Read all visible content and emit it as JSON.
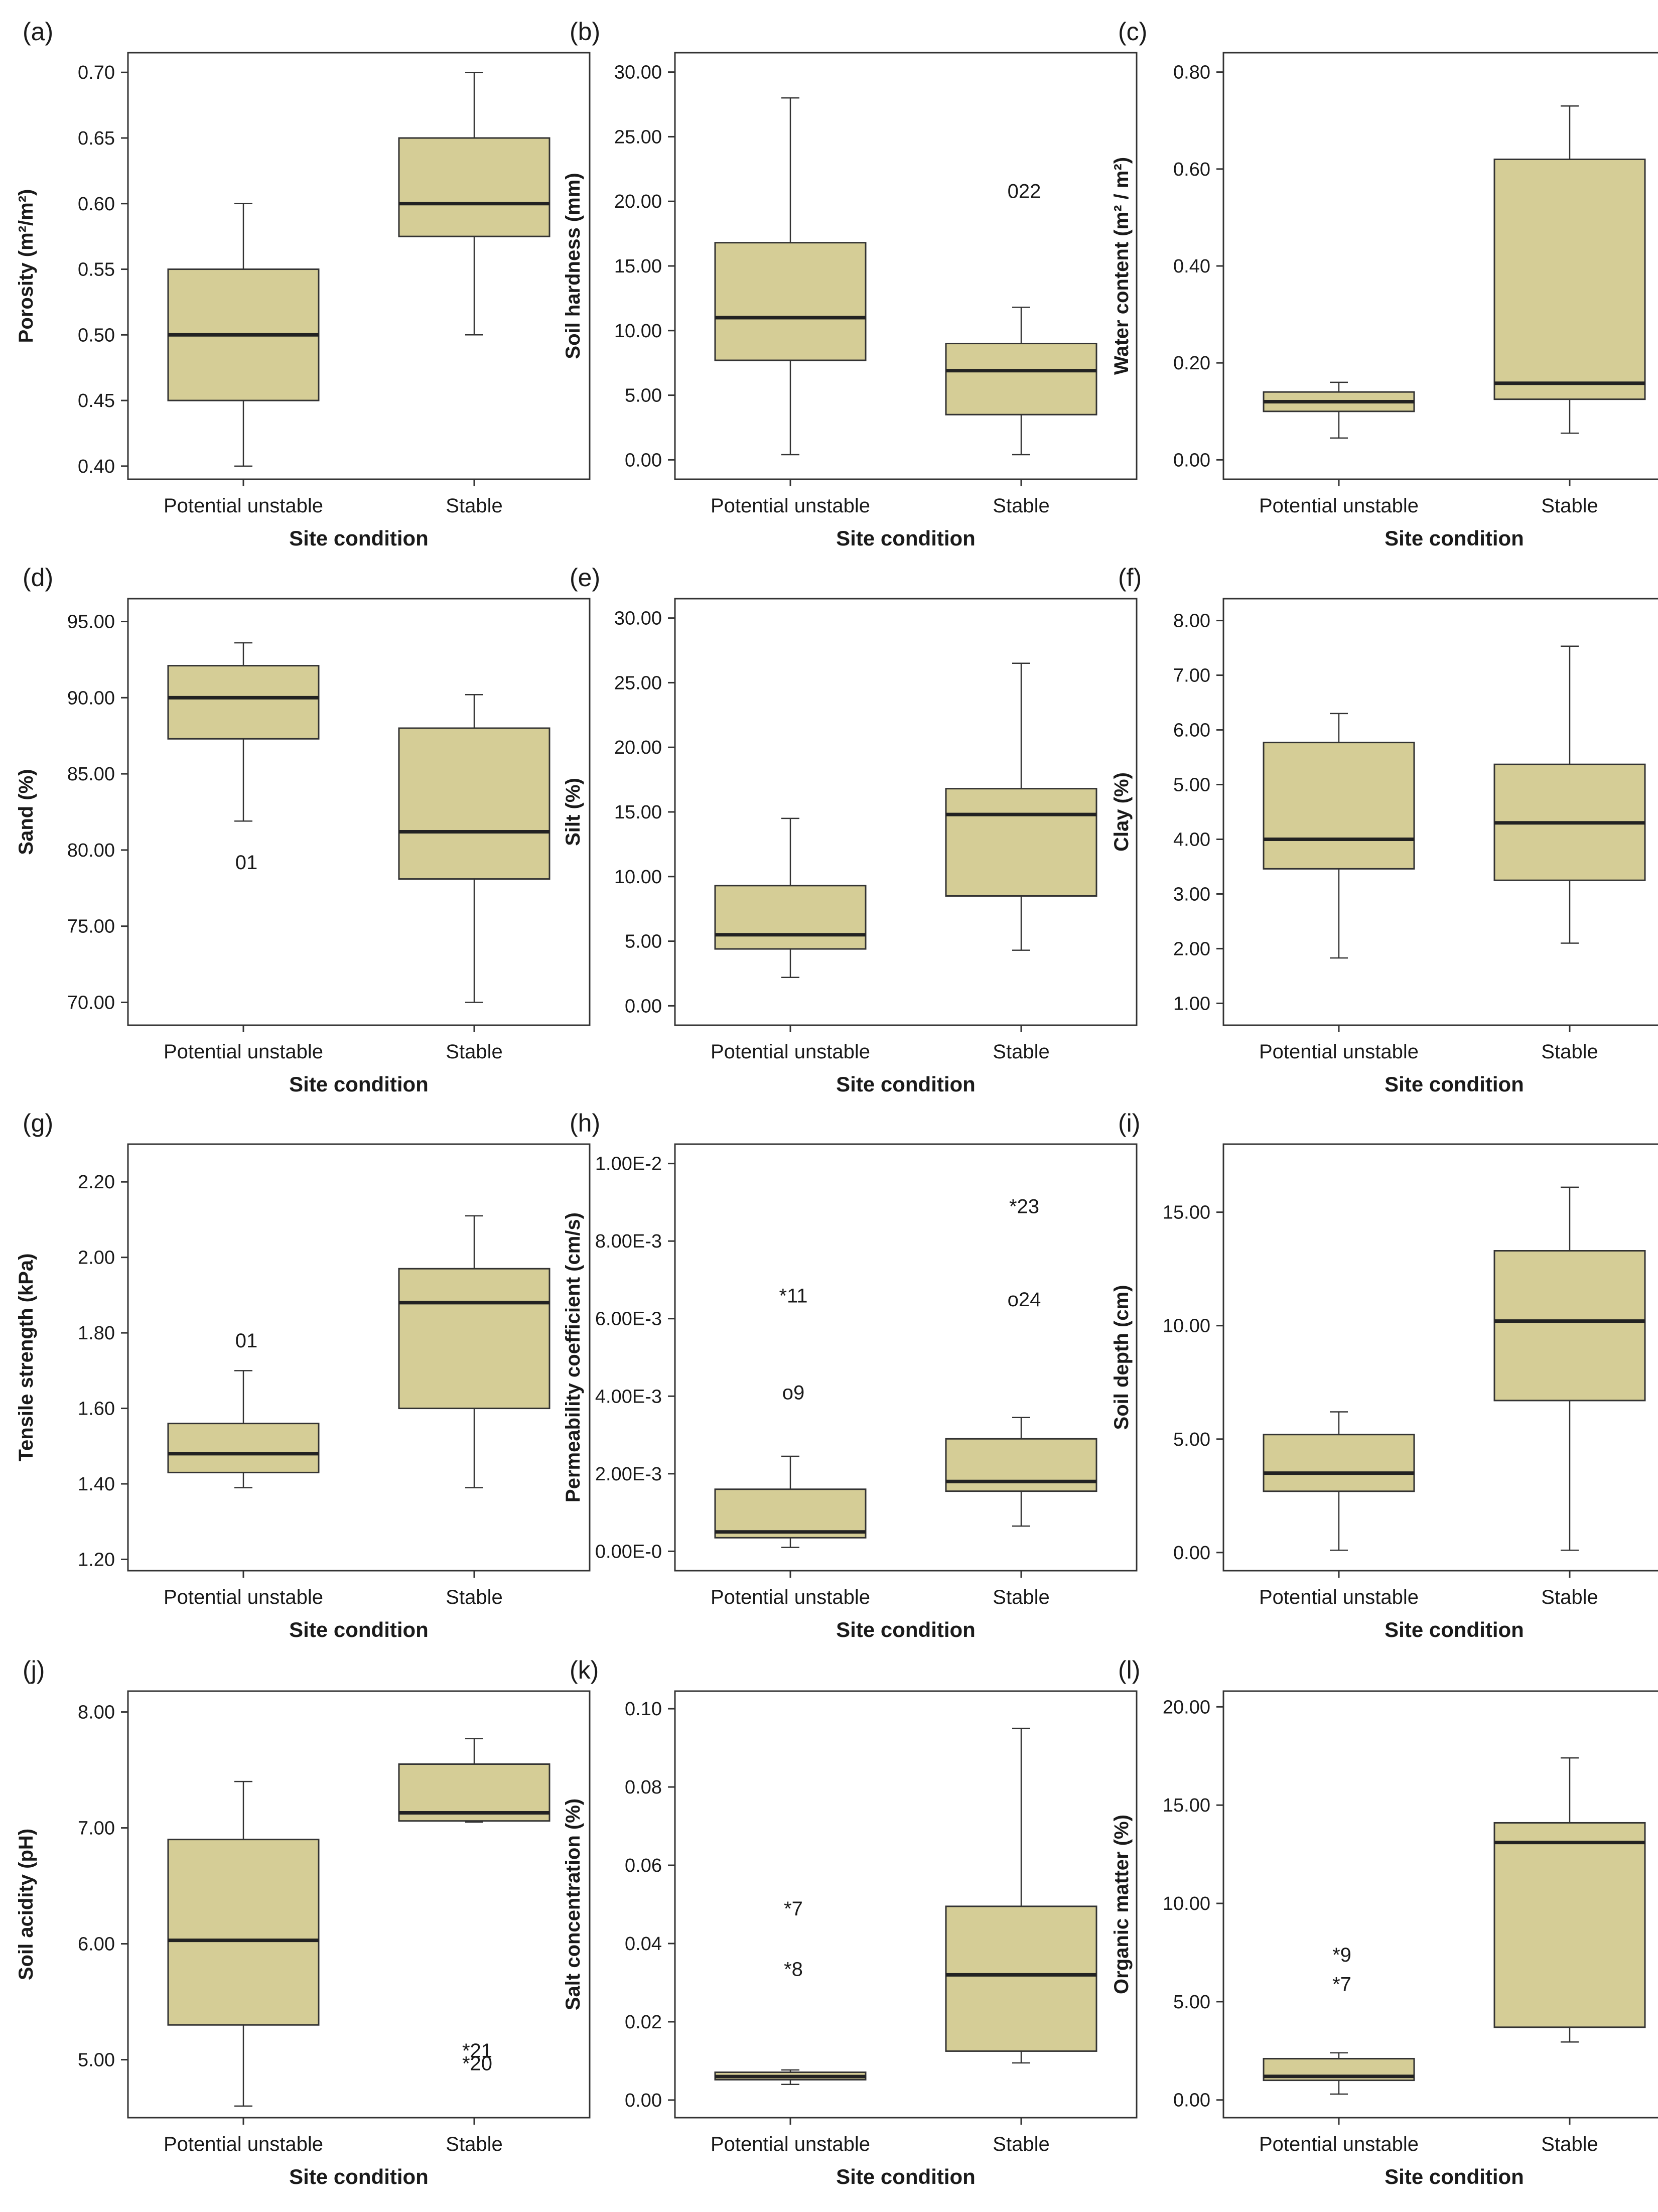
{
  "theme": {
    "box_fill": "#d5cd96",
    "stroke": "#333333",
    "text": "#1a1a1a",
    "background": "#ffffff"
  },
  "chart_data": [
    {
      "type": "box",
      "label": "(a)",
      "ylabel": "Porosity (m²/m²)",
      "xlabel": "Site condition",
      "categories": [
        "Potential unstable",
        "Stable"
      ],
      "ylim": [
        0.39,
        0.715
      ],
      "ticks": [
        "0.40",
        "0.45",
        "0.50",
        "0.55",
        "0.60",
        "0.65",
        "0.70"
      ],
      "series": [
        {
          "name": "Potential unstable",
          "min": 0.4,
          "q1": 0.45,
          "median": 0.5,
          "q3": 0.55,
          "max": 0.6,
          "outliers": []
        },
        {
          "name": "Stable",
          "min": 0.5,
          "q1": 0.575,
          "median": 0.6,
          "q3": 0.65,
          "max": 0.7,
          "outliers": []
        }
      ]
    },
    {
      "type": "box",
      "label": "(b)",
      "ylabel": "Soil hardness (mm)",
      "xlabel": "Site condition",
      "categories": [
        "Potential unstable",
        "Stable"
      ],
      "ylim": [
        -1.5,
        31.5
      ],
      "ticks": [
        "0.00",
        "5.00",
        "10.00",
        "15.00",
        "20.00",
        "25.00",
        "30.00"
      ],
      "series": [
        {
          "name": "Potential unstable",
          "min": 0.4,
          "q1": 7.7,
          "median": 11.0,
          "q3": 16.8,
          "max": 28.0,
          "outliers": []
        },
        {
          "name": "Stable",
          "min": 0.4,
          "q1": 3.5,
          "median": 6.9,
          "q3": 9.0,
          "max": 11.8,
          "outliers": [
            {
              "value": 20.8,
              "label": "022"
            }
          ]
        }
      ]
    },
    {
      "type": "box",
      "label": "(c)",
      "ylabel": "Water content (m² / m²)",
      "xlabel": "Site condition",
      "categories": [
        "Potential unstable",
        "Stable"
      ],
      "ylim": [
        -0.04,
        0.84
      ],
      "ticks": [
        "0.00",
        "0.20",
        "0.40",
        "0.60",
        "0.80"
      ],
      "series": [
        {
          "name": "Potential unstable",
          "min": 0.045,
          "q1": 0.1,
          "median": 0.12,
          "q3": 0.14,
          "max": 0.16,
          "outliers": []
        },
        {
          "name": "Stable",
          "min": 0.055,
          "q1": 0.125,
          "median": 0.158,
          "q3": 0.62,
          "max": 0.73,
          "outliers": []
        }
      ]
    },
    {
      "type": "box",
      "label": "(d)",
      "ylabel": "Sand (%)",
      "xlabel": "Site condition",
      "categories": [
        "Potential unstable",
        "Stable"
      ],
      "ylim": [
        68.5,
        96.5
      ],
      "ticks": [
        "70.00",
        "75.00",
        "80.00",
        "85.00",
        "90.00",
        "95.00"
      ],
      "series": [
        {
          "name": "Potential unstable",
          "min": 81.9,
          "q1": 87.3,
          "median": 90.0,
          "q3": 92.1,
          "max": 93.6,
          "outliers": [
            {
              "value": 79.2,
              "label": "01"
            }
          ]
        },
        {
          "name": "Stable",
          "min": 70.0,
          "q1": 78.1,
          "median": 81.2,
          "q3": 88.0,
          "max": 90.2,
          "outliers": []
        }
      ]
    },
    {
      "type": "box",
      "label": "(e)",
      "ylabel": "Silt (%)",
      "xlabel": "Site condition",
      "categories": [
        "Potential unstable",
        "Stable"
      ],
      "ylim": [
        -1.5,
        31.5
      ],
      "ticks": [
        "0.00",
        "5.00",
        "10.00",
        "15.00",
        "20.00",
        "25.00",
        "30.00"
      ],
      "series": [
        {
          "name": "Potential unstable",
          "min": 2.2,
          "q1": 4.4,
          "median": 5.5,
          "q3": 9.3,
          "max": 14.5,
          "outliers": []
        },
        {
          "name": "Stable",
          "min": 4.3,
          "q1": 8.5,
          "median": 14.8,
          "q3": 16.8,
          "max": 26.5,
          "outliers": []
        }
      ]
    },
    {
      "type": "box",
      "label": "(f)",
      "ylabel": "Clay (%)",
      "xlabel": "Site condition",
      "categories": [
        "Potential unstable",
        "Stable"
      ],
      "ylim": [
        0.6,
        8.4
      ],
      "ticks": [
        "1.00",
        "2.00",
        "3.00",
        "4.00",
        "5.00",
        "6.00",
        "7.00",
        "8.00"
      ],
      "series": [
        {
          "name": "Potential unstable",
          "min": 1.83,
          "q1": 3.46,
          "median": 4.0,
          "q3": 5.77,
          "max": 6.3,
          "outliers": []
        },
        {
          "name": "Stable",
          "min": 2.1,
          "q1": 3.25,
          "median": 4.3,
          "q3": 5.37,
          "max": 7.53,
          "outliers": []
        }
      ]
    },
    {
      "type": "box",
      "label": "(g)",
      "ylabel": "Tensile strength (kPa)",
      "xlabel": "Site condition",
      "categories": [
        "Potential unstable",
        "Stable"
      ],
      "ylim": [
        1.17,
        2.3
      ],
      "ticks": [
        "1.20",
        "1.40",
        "1.60",
        "1.80",
        "2.00",
        "2.20"
      ],
      "series": [
        {
          "name": "Potential unstable",
          "min": 1.39,
          "q1": 1.43,
          "median": 1.48,
          "q3": 1.56,
          "max": 1.7,
          "outliers": [
            {
              "value": 1.78,
              "label": "01"
            }
          ]
        },
        {
          "name": "Stable",
          "min": 1.39,
          "q1": 1.6,
          "median": 1.88,
          "q3": 1.97,
          "max": 2.11,
          "outliers": []
        }
      ]
    },
    {
      "type": "box",
      "label": "(h)",
      "ylabel": "Permeability coefficient (cm/s)",
      "xlabel": "Site condition",
      "categories": [
        "Potential unstable",
        "Stable"
      ],
      "ylim": [
        -0.0005,
        0.0105
      ],
      "ticks": [
        "0.00E-0",
        "2.00E-3",
        "4.00E-3",
        "6.00E-3",
        "8.00E-3",
        "1.00E-2"
      ],
      "series": [
        {
          "name": "Potential unstable",
          "min": 0.0001,
          "q1": 0.00035,
          "median": 0.0005,
          "q3": 0.0016,
          "max": 0.00245,
          "outliers": [
            {
              "value": 0.0066,
              "label": "*11"
            },
            {
              "value": 0.0041,
              "label": "o9"
            }
          ]
        },
        {
          "name": "Stable",
          "min": 0.00065,
          "q1": 0.00155,
          "median": 0.0018,
          "q3": 0.0029,
          "max": 0.00345,
          "outliers": [
            {
              "value": 0.0089,
              "label": "*23"
            },
            {
              "value": 0.0065,
              "label": "o24"
            }
          ]
        }
      ]
    },
    {
      "type": "box",
      "label": "(i)",
      "ylabel": "Soil depth (cm)",
      "xlabel": "Site condition",
      "categories": [
        "Potential unstable",
        "Stable"
      ],
      "ylim": [
        -0.8,
        18.0
      ],
      "ticks": [
        "0.00",
        "5.00",
        "10.00",
        "15.00"
      ],
      "series": [
        {
          "name": "Potential unstable",
          "min": 0.1,
          "q1": 2.7,
          "median": 3.5,
          "q3": 5.2,
          "max": 6.2,
          "outliers": []
        },
        {
          "name": "Stable",
          "min": 0.1,
          "q1": 6.7,
          "median": 10.2,
          "q3": 13.3,
          "max": 16.1,
          "outliers": []
        }
      ]
    },
    {
      "type": "box",
      "label": "(j)",
      "ylabel": "Soil acidity (pH)",
      "xlabel": "Site condition",
      "categories": [
        "Potential unstable",
        "Stable"
      ],
      "ylim": [
        4.5,
        8.18
      ],
      "ticks": [
        "5.00",
        "6.00",
        "7.00",
        "8.00"
      ],
      "series": [
        {
          "name": "Potential unstable",
          "min": 4.6,
          "q1": 5.3,
          "median": 6.03,
          "q3": 6.9,
          "max": 7.4,
          "outliers": []
        },
        {
          "name": "Stable",
          "min": 7.05,
          "q1": 7.06,
          "median": 7.13,
          "q3": 7.55,
          "max": 7.77,
          "outliers": [
            {
              "value": 5.08,
              "label": "*21"
            },
            {
              "value": 4.97,
              "label": "*20"
            }
          ]
        }
      ]
    },
    {
      "type": "box",
      "label": "(k)",
      "ylabel": "Salt concentration (%)",
      "xlabel": "Site condition",
      "categories": [
        "Potential unstable",
        "Stable"
      ],
      "ylim": [
        -0.0045,
        0.1045
      ],
      "ticks": [
        "0.00",
        "0.02",
        "0.04",
        "0.06",
        "0.08",
        "0.10"
      ],
      "series": [
        {
          "name": "Potential unstable",
          "min": 0.004,
          "q1": 0.0052,
          "median": 0.006,
          "q3": 0.0071,
          "max": 0.0077,
          "outliers": [
            {
              "value": 0.049,
              "label": "*7"
            },
            {
              "value": 0.0335,
              "label": "*8"
            }
          ]
        },
        {
          "name": "Stable",
          "min": 0.0095,
          "q1": 0.0125,
          "median": 0.032,
          "q3": 0.0495,
          "max": 0.095,
          "outliers": []
        }
      ]
    },
    {
      "type": "box",
      "label": "(l)",
      "ylabel": "Organic matter (%)",
      "xlabel": "Site condition",
      "categories": [
        "Potential unstable",
        "Stable"
      ],
      "ylim": [
        -0.9,
        20.8
      ],
      "ticks": [
        "0.00",
        "5.00",
        "10.00",
        "15.00",
        "20.00"
      ],
      "series": [
        {
          "name": "Potential unstable",
          "min": 0.3,
          "q1": 1.0,
          "median": 1.2,
          "q3": 2.1,
          "max": 2.4,
          "outliers": [
            {
              "value": 7.4,
              "label": "*9"
            },
            {
              "value": 5.9,
              "label": "*7"
            }
          ]
        },
        {
          "name": "Stable",
          "min": 2.95,
          "q1": 3.7,
          "median": 13.1,
          "q3": 14.1,
          "max": 17.4,
          "outliers": []
        }
      ]
    }
  ]
}
